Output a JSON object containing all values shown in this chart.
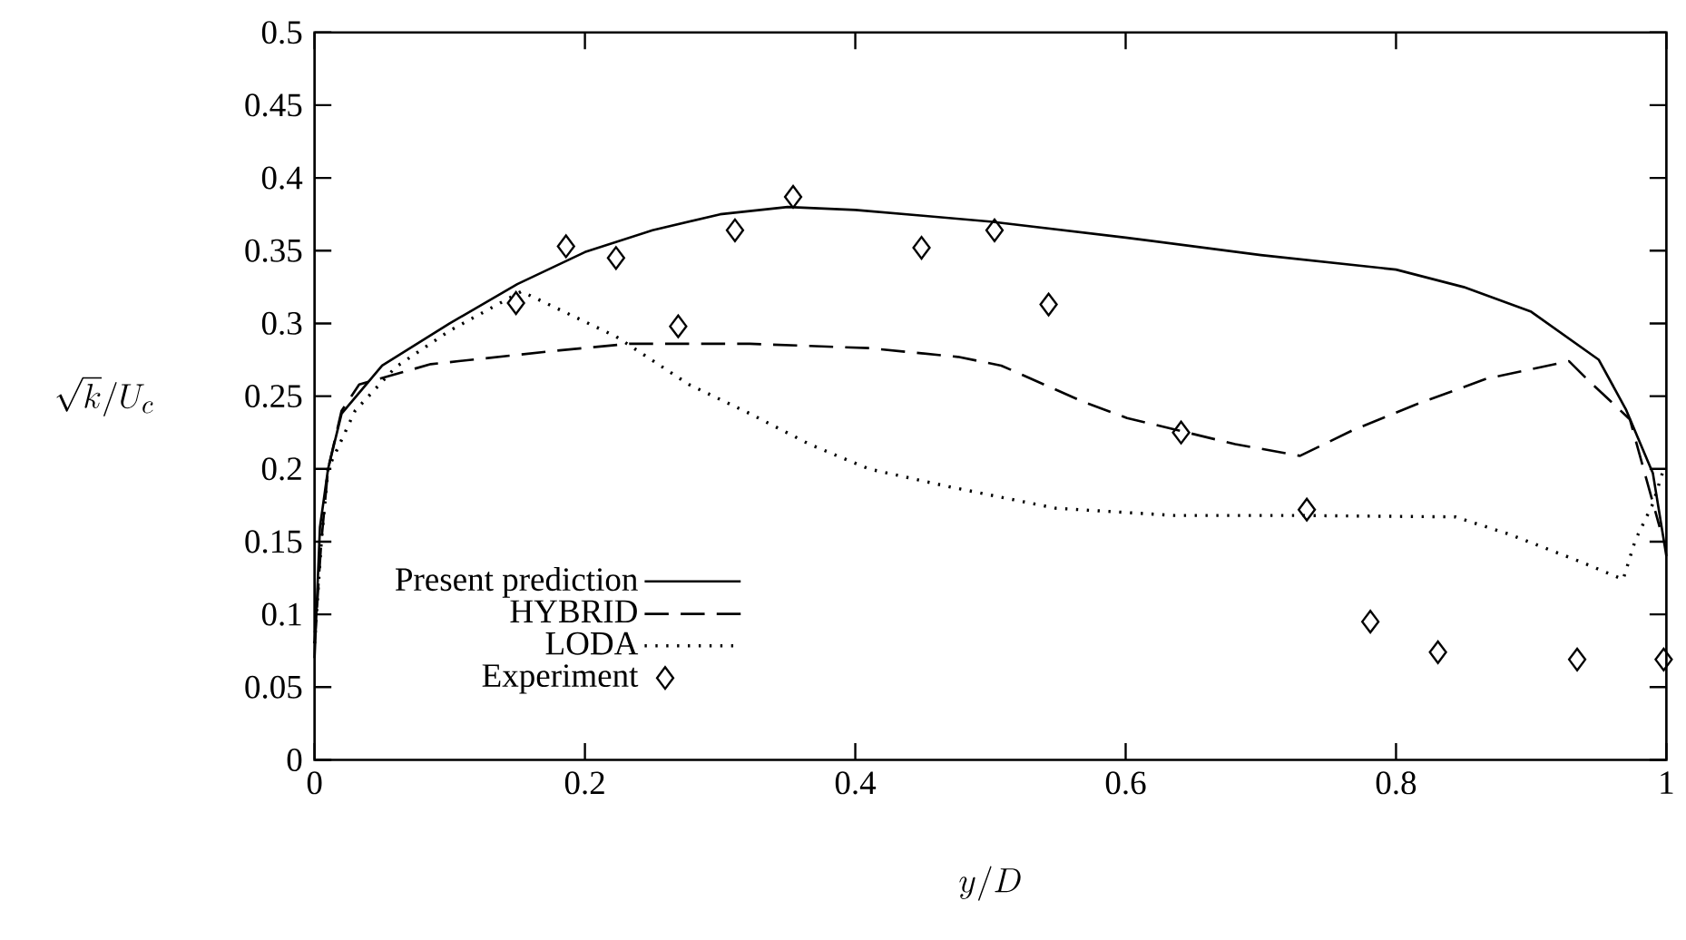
{
  "chart_data": {
    "type": "line",
    "xlabel": "y/D",
    "ylabel": "\\sqrt{k}/U_c",
    "xlim": [
      0,
      1
    ],
    "ylim": [
      0,
      0.5
    ],
    "xticks": [
      0,
      0.2,
      0.4,
      0.6,
      0.8,
      1
    ],
    "yticks": [
      0,
      0.05,
      0.1,
      0.15,
      0.2,
      0.25,
      0.3,
      0.35,
      0.4,
      0.45,
      0.5
    ],
    "legend": "bottom left",
    "series": [
      {
        "name": "Present prediction",
        "type": "line",
        "line_style": "solid",
        "color": "#000000",
        "x": [
          0,
          0.004,
          0.01,
          0.02,
          0.05,
          0.1,
          0.15,
          0.2,
          0.25,
          0.3,
          0.35,
          0.4,
          0.45,
          0.5,
          0.6,
          0.7,
          0.8,
          0.85,
          0.9,
          0.95,
          0.97,
          0.99,
          1.0
        ],
        "values": [
          0.07,
          0.16,
          0.2,
          0.238,
          0.271,
          0.3,
          0.327,
          0.349,
          0.364,
          0.375,
          0.38,
          0.378,
          0.374,
          0.37,
          0.359,
          0.347,
          0.337,
          0.325,
          0.308,
          0.275,
          0.241,
          0.197,
          0.14
        ]
      },
      {
        "name": "HYBRID",
        "type": "line",
        "line_style": "dashed",
        "color": "#000000",
        "x": [
          0,
          0.005,
          0.01,
          0.02,
          0.033,
          0.086,
          0.176,
          0.233,
          0.322,
          0.41,
          0.476,
          0.508,
          0.569,
          0.601,
          0.681,
          0.729,
          0.769,
          0.814,
          0.867,
          0.928,
          0.941,
          0.973,
          0.995
        ],
        "values": [
          0.08,
          0.15,
          0.2,
          0.24,
          0.258,
          0.272,
          0.281,
          0.286,
          0.286,
          0.283,
          0.277,
          0.271,
          0.246,
          0.235,
          0.217,
          0.209,
          0.227,
          0.244,
          0.262,
          0.274,
          0.262,
          0.234,
          0.16
        ]
      },
      {
        "name": "LODA",
        "type": "line",
        "line_style": "dotted",
        "color": "#000000",
        "x": [
          0,
          0.005,
          0.01,
          0.03,
          0.06,
          0.1,
          0.153,
          0.223,
          0.277,
          0.322,
          0.366,
          0.41,
          0.468,
          0.548,
          0.636,
          0.725,
          0.844,
          0.884,
          0.937,
          0.968,
          0.977,
          0.99,
          0.998
        ],
        "values": [
          0.08,
          0.15,
          0.2,
          0.24,
          0.27,
          0.295,
          0.322,
          0.291,
          0.258,
          0.238,
          0.217,
          0.2,
          0.188,
          0.173,
          0.168,
          0.168,
          0.167,
          0.155,
          0.136,
          0.124,
          0.151,
          0.176,
          0.2
        ]
      },
      {
        "name": "Experiment",
        "type": "scatter",
        "marker": "diamond",
        "color": "#000000",
        "x": [
          0.149,
          0.186,
          0.223,
          0.269,
          0.311,
          0.354,
          0.449,
          0.503,
          0.543,
          0.641,
          0.734,
          0.781,
          0.831,
          0.934,
          0.998
        ],
        "values": [
          0.314,
          0.353,
          0.345,
          0.298,
          0.364,
          0.387,
          0.352,
          0.364,
          0.313,
          0.225,
          0.172,
          0.095,
          0.074,
          0.069,
          0.069
        ]
      }
    ]
  }
}
